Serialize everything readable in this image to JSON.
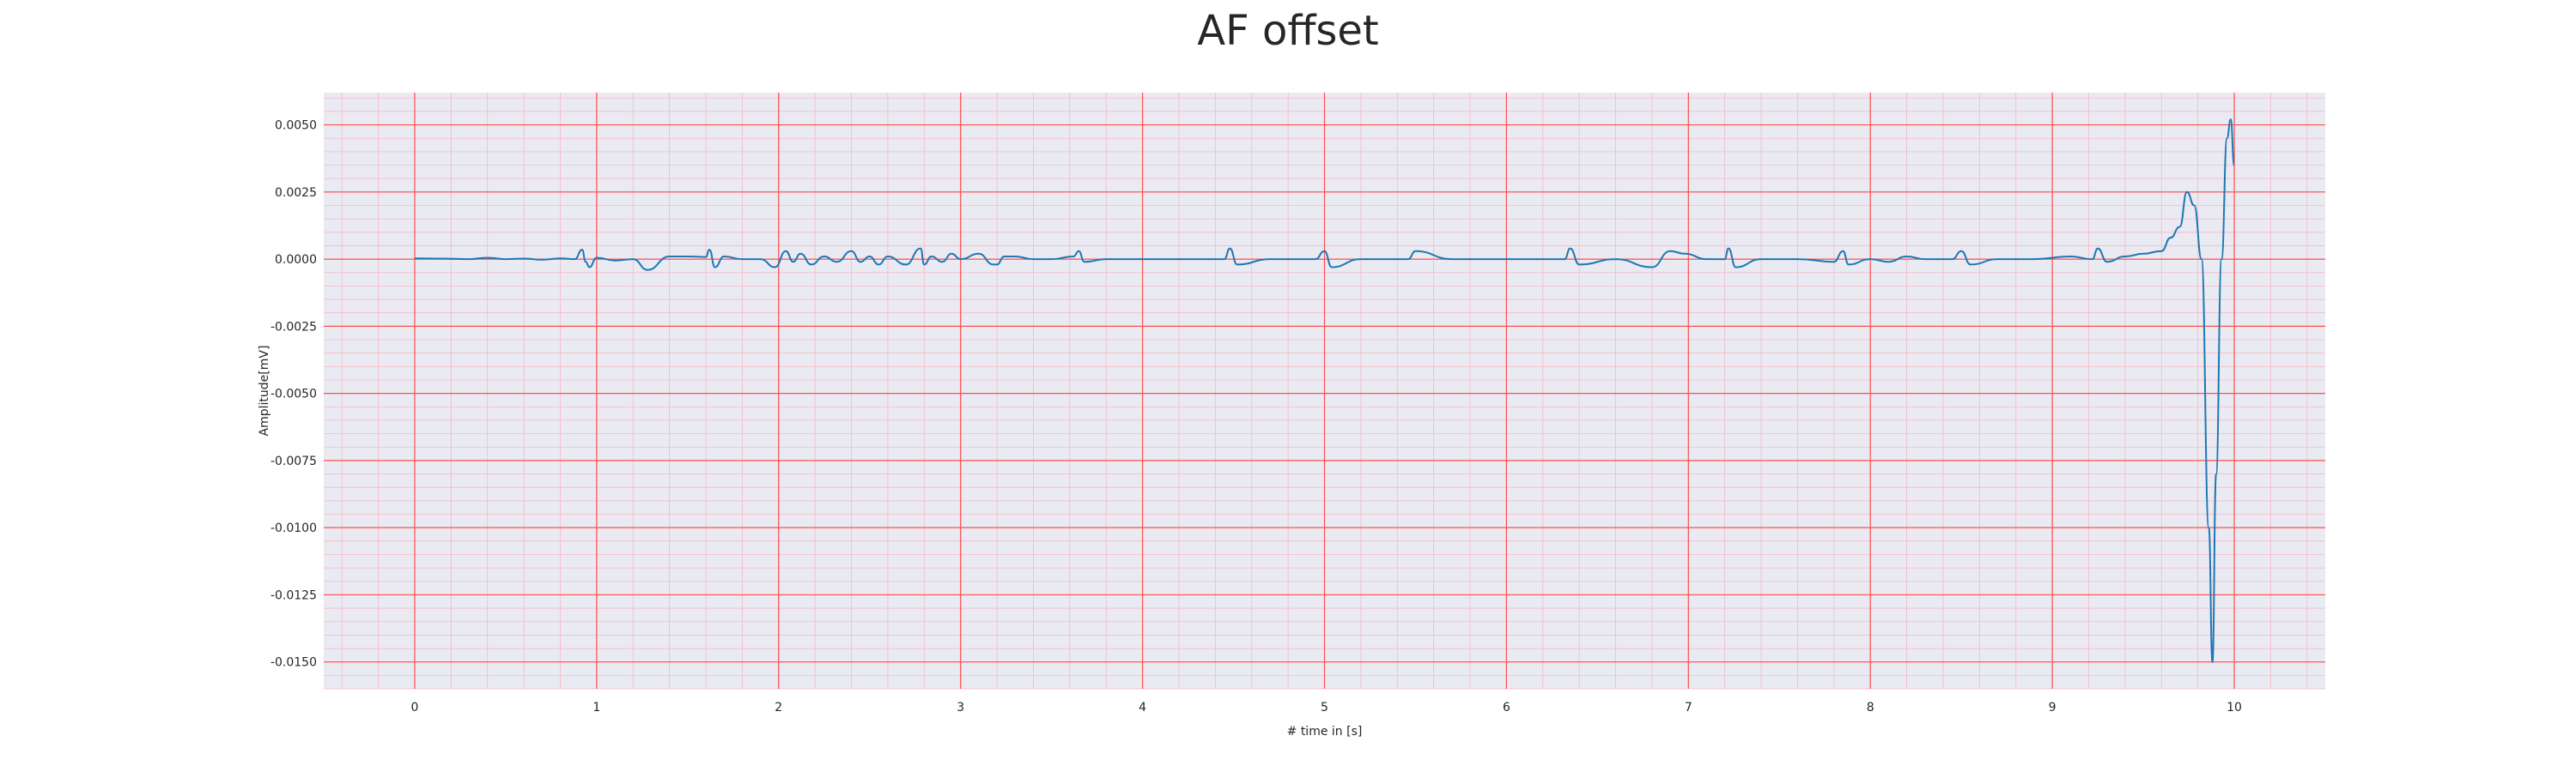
{
  "chart_data": {
    "type": "line",
    "title": "AF offset",
    "xlabel": "# time in [s]",
    "ylabel": "Amplitude[mV]",
    "xlim": [
      -0.5,
      10.5
    ],
    "ylim": [
      -0.016,
      0.0062
    ],
    "xticks": [
      0,
      1,
      2,
      3,
      4,
      5,
      6,
      7,
      8,
      9,
      10
    ],
    "xtick_labels": [
      "0",
      "1",
      "2",
      "3",
      "4",
      "5",
      "6",
      "7",
      "8",
      "9",
      "10"
    ],
    "yticks": [
      0.005,
      0.0025,
      0.0,
      -0.0025,
      -0.005,
      -0.0075,
      -0.01,
      -0.0125,
      -0.015
    ],
    "ytick_labels": [
      "0.0050",
      "0.0025",
      "0.0000",
      "-0.0025",
      "-0.0050",
      "-0.0075",
      "-0.0100",
      "-0.0125",
      "-0.0150"
    ],
    "grid": true,
    "colors": {
      "background": "#eaeaf2",
      "major_grid": "#ff4d4d",
      "minor_grid": "#f7b8c4",
      "line": "#1f77b4"
    },
    "series": [
      {
        "x": [
          0.0,
          0.15,
          0.3,
          0.4,
          0.5,
          0.6,
          0.7,
          0.8,
          0.88,
          0.92,
          0.94,
          0.96,
          1.0,
          1.1,
          1.2,
          1.28,
          1.4,
          1.5,
          1.6,
          1.62,
          1.65,
          1.7,
          1.8,
          1.9,
          1.98,
          2.04,
          2.08,
          2.12,
          2.18,
          2.25,
          2.32,
          2.4,
          2.45,
          2.5,
          2.55,
          2.6,
          2.7,
          2.78,
          2.8,
          2.84,
          2.9,
          2.95,
          3.0,
          3.1,
          3.18,
          3.2,
          3.24,
          3.3,
          3.4,
          3.5,
          3.62,
          3.65,
          3.68,
          3.8,
          4.0,
          4.2,
          4.45,
          4.48,
          4.52,
          4.7,
          4.95,
          5.0,
          5.04,
          5.2,
          5.46,
          5.5,
          5.7,
          6.0,
          6.2,
          6.32,
          6.35,
          6.4,
          6.6,
          6.8,
          6.9,
          6.98,
          7.1,
          7.2,
          7.22,
          7.26,
          7.4,
          7.6,
          7.8,
          7.85,
          7.88,
          8.0,
          8.1,
          8.2,
          8.3,
          8.45,
          8.5,
          8.55,
          8.7,
          8.9,
          9.1,
          9.22,
          9.25,
          9.3,
          9.4,
          9.5,
          9.6,
          9.65,
          9.7,
          9.74,
          9.78,
          9.82,
          9.86,
          9.88,
          9.9,
          9.93,
          9.96,
          9.98,
          10.0
        ],
        "y": [
          3e-05,
          2e-05,
          0.0,
          5e-05,
          0.0,
          2e-05,
          -2e-05,
          3e-05,
          0.0,
          0.00035,
          -0.0001,
          -0.0003,
          5e-05,
          -5e-05,
          0.0,
          -0.0004,
          0.0001,
          0.0001,
          8e-05,
          0.00035,
          -0.0003,
          0.0001,
          0.0,
          0.0,
          -0.0003,
          0.0003,
          -0.0001,
          0.0002,
          -0.0002,
          0.0001,
          -0.0001,
          0.0003,
          -0.0001,
          0.0001,
          -0.0002,
          0.0001,
          -0.0002,
          0.0004,
          -0.0002,
          0.0001,
          -0.0001,
          0.0002,
          0.0,
          0.0002,
          -0.0002,
          -0.0002,
          0.0001,
          0.0001,
          0.0,
          0.0,
          0.0001,
          0.0003,
          -0.0001,
          0.0,
          0.0,
          0.0,
          0.0,
          0.0004,
          -0.0002,
          0.0,
          0.0,
          0.0003,
          -0.0003,
          0.0,
          0.0,
          0.0003,
          0.0,
          0.0,
          0.0,
          0.0,
          0.0004,
          -0.0002,
          0.0,
          -0.0003,
          0.0003,
          0.0002,
          0.0,
          0.0,
          0.0004,
          -0.0003,
          0.0,
          0.0,
          -0.0001,
          0.0003,
          -0.0002,
          0.0,
          -0.0001,
          0.0001,
          0.0,
          0.0,
          0.0003,
          -0.0002,
          0.0,
          0.0,
          0.0001,
          0.0,
          0.0004,
          -0.0001,
          0.0001,
          0.0002,
          0.0003,
          0.0008,
          0.0012,
          0.0025,
          0.002,
          0.0,
          -0.01,
          -0.015,
          -0.008,
          0.0,
          0.0045,
          0.0052,
          0.0035
        ]
      }
    ]
  }
}
